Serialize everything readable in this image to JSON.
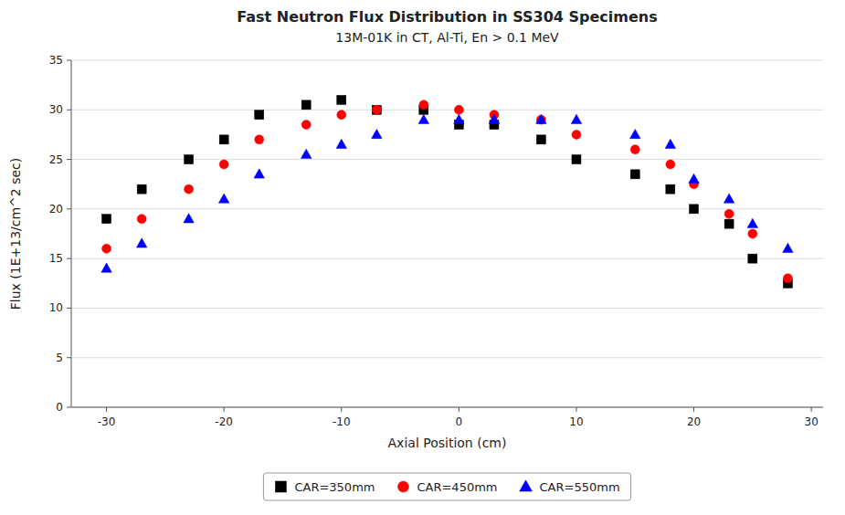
{
  "chart_data": {
    "type": "scatter",
    "title": "Fast Neutron Flux Distribution in SS304 Specimens",
    "subtitle": "13M-01K in CT, Al-Ti, En > 0.1 MeV",
    "x_label": "Axial Position (cm)",
    "y_label": "Flux (1E+13/cm^2 sec)",
    "xlim": [
      -33,
      31
    ],
    "ylim": [
      0,
      35
    ],
    "xticks": [
      -30,
      -20,
      -10,
      0,
      10,
      20,
      30
    ],
    "yticks": [
      0,
      5,
      10,
      15,
      20,
      25,
      30,
      35
    ],
    "grid": "y",
    "legend": "bottom",
    "series": [
      {
        "name": "CAR=350mm",
        "color": "black",
        "marker": "square",
        "x": [
          -30,
          -27,
          -23,
          -20,
          -17,
          -13,
          -10,
          -7,
          -3,
          0,
          3,
          7,
          10,
          15,
          18,
          20,
          23,
          25,
          28
        ],
        "values": [
          19,
          22,
          25,
          27,
          29.5,
          30.5,
          31,
          30,
          30,
          28.5,
          28.5,
          27,
          25,
          23.5,
          22,
          20,
          18.5,
          15,
          12.5
        ]
      },
      {
        "name": "CAR=450mm",
        "color": "red",
        "marker": "circle",
        "x": [
          -30,
          -27,
          -23,
          -20,
          -17,
          -13,
          -10,
          -7,
          -3,
          0,
          3,
          7,
          10,
          15,
          18,
          20,
          23,
          25,
          28
        ],
        "values": [
          16,
          19,
          22,
          24.5,
          27,
          28.5,
          29.5,
          30,
          30.5,
          30,
          29.5,
          29,
          27.5,
          26,
          24.5,
          22.5,
          19.5,
          17.5,
          13
        ]
      },
      {
        "name": "CAR=550mm",
        "color": "blue",
        "marker": "triangle",
        "x": [
          -30,
          -27,
          -23,
          -20,
          -17,
          -13,
          -10,
          -7,
          -3,
          0,
          3,
          7,
          10,
          15,
          18,
          20,
          23,
          25,
          28
        ],
        "values": [
          14,
          16.5,
          19,
          21,
          23.5,
          25.5,
          26.5,
          27.5,
          29,
          29,
          29,
          29,
          29,
          27.5,
          26.5,
          23,
          21,
          18.5,
          16
        ]
      }
    ]
  }
}
